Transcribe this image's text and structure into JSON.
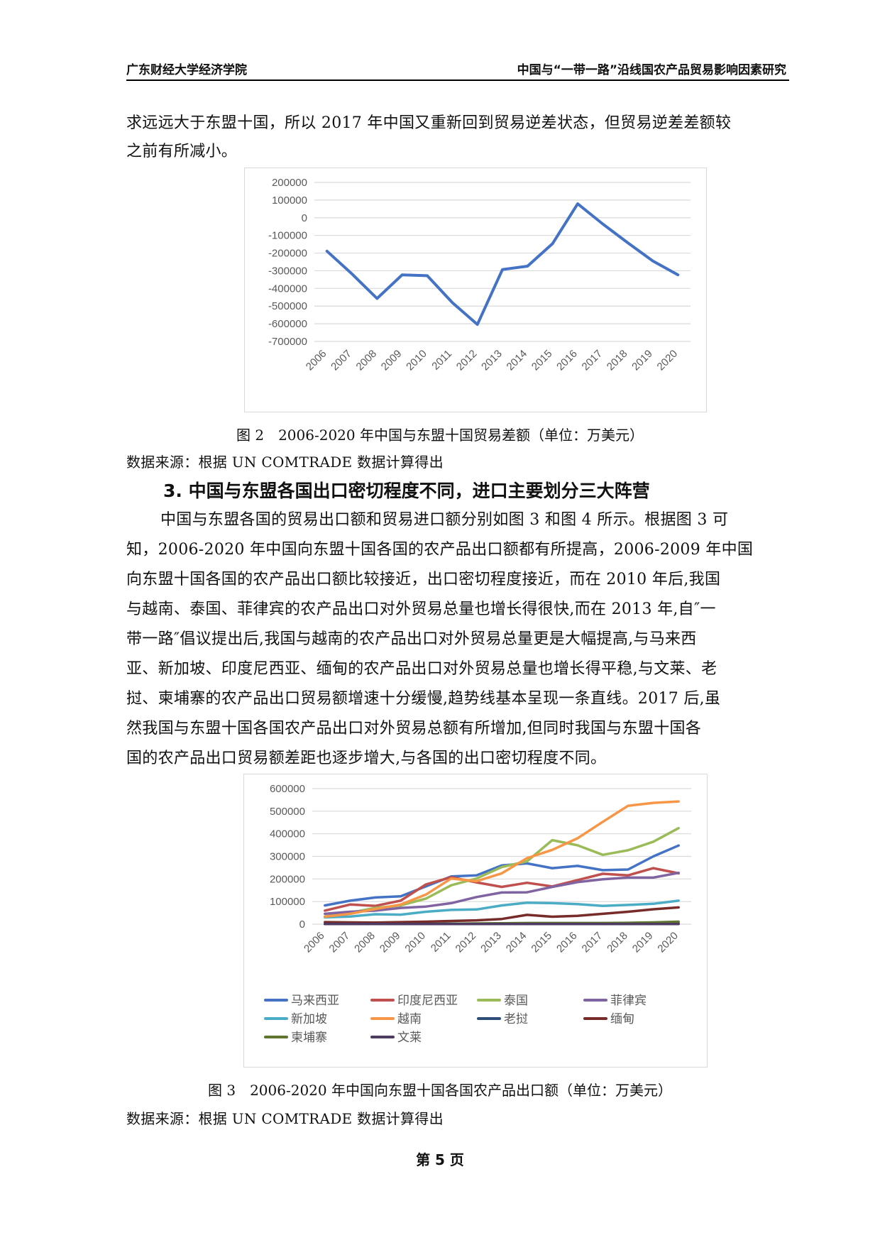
{
  "header": {
    "left": "广东财经大学经济学院",
    "right": "中国与“一带一路”沿线国农产品贸易影响因素研究"
  },
  "intro_lines": [
    "求远远大于东盟十国，所以 2017 年中国又重新回到贸易逆差状态，但贸易逆差差额较",
    "之前有所减小。"
  ],
  "figure2": {
    "caption": "图 2　2006-2020 年中国与东盟十国贸易差额（单位：万美元）",
    "source": "数据来源：根据 UN COMTRADE 数据计算得出"
  },
  "section": {
    "heading": "3. 中国与东盟各国出口密切程度不同，进口主要划分三大阵营",
    "lines": [
      "中国与东盟各国的贸易出口额和贸易进口额分别如图 3 和图 4 所示。根据图 3 可",
      "知，2006-2020 年中国向东盟十国各国的农产品出口额都有所提高，2006-2009 年中国",
      "向东盟十国各国的农产品出口额比较接近，出口密切程度接近，而在 2010 年后,我国",
      "与越南、泰国、菲律宾的农产品出口对外贸易总量也增长得很快,而在 2013 年,自″一",
      "带一路″倡议提出后,我国与越南的农产品出口对外贸易总量更是大幅提高,与马来西",
      "亚、新加坡、印度尼西亚、缅甸的农产品出口对外贸易总量也增长得平稳,与文莱、老",
      "挝、柬埔寨的农产品出口贸易额增速十分缓慢,趋势线基本呈现一条直线。2017 后,虽",
      "然我国与东盟十国各国农产品出口对外贸易总额有所增加,但同时我国与东盟十国各",
      "国的农产品出口贸易额差距也逐步增大,与各国的出口密切程度不同。"
    ]
  },
  "figure3": {
    "caption": "图 3　2006-2020 年中国向东盟十国各国农产品出口额（单位：万美元）",
    "source": "数据来源：根据 UN COMTRADE 数据计算得出"
  },
  "footer": {
    "page": "第 5 页"
  },
  "chart_data": [
    {
      "type": "line",
      "title": "2006-2020年中国与东盟十国贸易差额（单位：万美元）",
      "xlabel": "",
      "ylabel": "",
      "categories": [
        "2006",
        "2007",
        "2008",
        "2009",
        "2010",
        "2011",
        "2012",
        "2013",
        "2014",
        "2015",
        "2016",
        "2017",
        "2018",
        "2019",
        "2020"
      ],
      "series": [
        {
          "name": "贸易差额",
          "color": "#4472C4",
          "values": [
            -189000,
            -318000,
            -457000,
            -323000,
            -328000,
            -480000,
            -604000,
            -293000,
            -274000,
            -146000,
            79000,
            -35000,
            -142000,
            -245000,
            -323000
          ]
        }
      ],
      "yticks": [
        200000,
        100000,
        0,
        -100000,
        -200000,
        -300000,
        -400000,
        -500000,
        -600000,
        -700000
      ],
      "ylim": [
        -700000,
        200000
      ],
      "grid": true,
      "legend": "none"
    },
    {
      "type": "line",
      "title": "2006-2020年中国向东盟十国各国农产品出口额（单位：万美元）",
      "xlabel": "",
      "ylabel": "",
      "categories": [
        "2006",
        "2007",
        "2008",
        "2009",
        "2010",
        "2011",
        "2012",
        "2013",
        "2014",
        "2015",
        "2016",
        "2017",
        "2018",
        "2019",
        "2020"
      ],
      "series": [
        {
          "name": "马来西亚",
          "color": "#4472C4",
          "values": [
            83000,
            104000,
            118000,
            123000,
            167000,
            211000,
            216000,
            260000,
            269000,
            248000,
            258000,
            239000,
            242000,
            300000,
            348000
          ]
        },
        {
          "name": "印度尼西亚",
          "color": "#C0504D",
          "values": [
            60000,
            87000,
            81000,
            104000,
            176000,
            208000,
            185000,
            165000,
            183000,
            167000,
            195000,
            223000,
            216000,
            248000,
            225000
          ]
        },
        {
          "name": "泰国",
          "color": "#9BBB59",
          "values": [
            34000,
            51000,
            72000,
            83000,
            113000,
            172000,
            202000,
            253000,
            278000,
            372000,
            349000,
            307000,
            327000,
            365000,
            425000
          ]
        },
        {
          "name": "菲律宾",
          "color": "#8064A2",
          "values": [
            46000,
            55000,
            60000,
            72000,
            78000,
            93000,
            120000,
            140000,
            141000,
            165000,
            186000,
            199000,
            206000,
            206000,
            227000
          ]
        },
        {
          "name": "新加坡",
          "color": "#4BACC6",
          "values": [
            30000,
            34000,
            44000,
            42000,
            55000,
            63000,
            65000,
            83000,
            95000,
            93000,
            89000,
            81000,
            85000,
            90000,
            104000
          ]
        },
        {
          "name": "越南",
          "color": "#F79646",
          "values": [
            33000,
            46000,
            67000,
            87000,
            131000,
            202000,
            190000,
            225000,
            292000,
            329000,
            380000,
            453000,
            524000,
            537000,
            543000
          ]
        },
        {
          "name": "老挝",
          "color": "#2C4D75",
          "values": [
            1000,
            1000,
            1000,
            1000,
            1000,
            2000,
            2000,
            2000,
            2000,
            2000,
            2000,
            2000,
            3000,
            3000,
            3000
          ]
        },
        {
          "name": "缅甸",
          "color": "#772C2A",
          "values": [
            9000,
            8000,
            7000,
            9000,
            11000,
            14000,
            17000,
            23000,
            41000,
            33000,
            37000,
            46000,
            55000,
            66000,
            74000
          ]
        },
        {
          "name": "柬埔寨",
          "color": "#5F7530",
          "values": [
            1000,
            1000,
            1000,
            1000,
            1000,
            2000,
            3000,
            4000,
            5000,
            5000,
            5000,
            5000,
            6000,
            8000,
            11000
          ]
        },
        {
          "name": "文莱",
          "color": "#4D3B62",
          "values": [
            500,
            500,
            500,
            500,
            500,
            500,
            500,
            500,
            500,
            500,
            500,
            500,
            500,
            500,
            500
          ]
        }
      ],
      "yticks": [
        600000,
        500000,
        400000,
        300000,
        200000,
        100000,
        0
      ],
      "ylim": [
        0,
        600000
      ],
      "grid": true,
      "legend": "bottom"
    }
  ]
}
